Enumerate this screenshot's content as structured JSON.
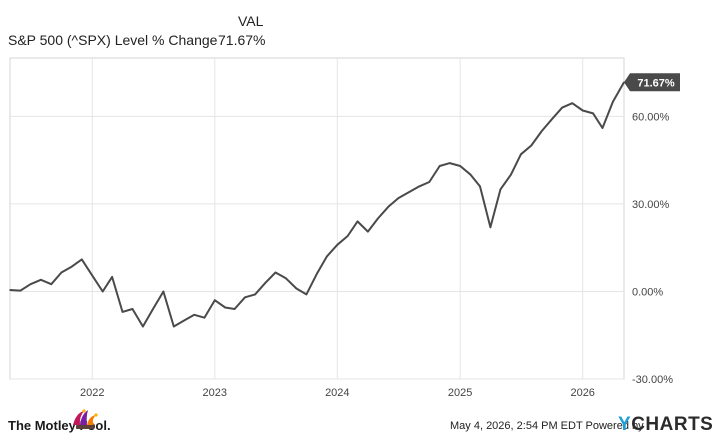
{
  "legend": {
    "column_header": "VAL",
    "series_name": "S&P 500 (^SPX) Level % Change",
    "series_value": "71.67%"
  },
  "chart_data": {
    "type": "line",
    "series": [
      {
        "name": "S&P 500 (^SPX) Level % Change",
        "x": [
          "2021-05-01",
          "2021-06-01",
          "2021-07-01",
          "2021-08-01",
          "2021-09-01",
          "2021-10-01",
          "2021-11-01",
          "2021-12-01",
          "2022-01-01",
          "2022-02-01",
          "2022-03-01",
          "2022-04-01",
          "2022-05-01",
          "2022-06-01",
          "2022-07-01",
          "2022-08-01",
          "2022-09-01",
          "2022-10-01",
          "2022-11-01",
          "2022-12-01",
          "2023-01-01",
          "2023-02-01",
          "2023-03-01",
          "2023-04-01",
          "2023-05-01",
          "2023-06-01",
          "2023-07-01",
          "2023-08-01",
          "2023-09-01",
          "2023-10-01",
          "2023-11-01",
          "2023-12-01",
          "2024-01-01",
          "2024-02-01",
          "2024-03-01",
          "2024-04-01",
          "2024-05-01",
          "2024-06-01",
          "2024-07-01",
          "2024-08-01",
          "2024-09-01",
          "2024-10-01",
          "2024-11-01",
          "2024-12-01",
          "2025-01-01",
          "2025-02-01",
          "2025-03-01",
          "2025-04-01",
          "2025-05-01",
          "2025-06-01",
          "2025-07-01",
          "2025-08-01",
          "2025-09-01",
          "2025-10-01",
          "2025-11-01",
          "2025-12-01",
          "2026-01-01",
          "2026-02-01",
          "2026-03-01",
          "2026-04-01",
          "2026-05-04"
        ],
        "values": [
          0.5,
          0.3,
          2.5,
          4.0,
          2.5,
          6.5,
          8.5,
          11.0,
          5.5,
          0.0,
          5.0,
          -7.0,
          -6.0,
          -12.0,
          -6.0,
          0.0,
          -12.0,
          -10.0,
          -8.0,
          -9.0,
          -3.0,
          -5.5,
          -6.0,
          -2.0,
          -1.0,
          3.0,
          6.5,
          4.5,
          1.0,
          -1.0,
          6.0,
          12.0,
          16.0,
          19.0,
          24.0,
          20.5,
          25.0,
          29.0,
          32.0,
          34.0,
          36.0,
          37.5,
          43.0,
          44.0,
          43.0,
          40.0,
          36.0,
          22.0,
          35.0,
          40.0,
          47.0,
          50.0,
          55.0,
          59.0,
          63.0,
          64.5,
          62.0,
          61.0,
          56.0,
          65.0,
          71.67
        ]
      }
    ],
    "x_ticks": [
      "2022",
      "2023",
      "2024",
      "2025",
      "2026"
    ],
    "y_ticks": [
      -30,
      0,
      30,
      60
    ],
    "y_tick_labels": [
      "-30.00%",
      "0.00%",
      "30.00%",
      "60.00%"
    ],
    "ylim": [
      -30,
      80
    ],
    "xlim": [
      "2021-05-01",
      "2026-05-04"
    ],
    "end_label": "71.67%",
    "grid": true,
    "y_axis_position": "right",
    "colors": {
      "line": "#4a4a4a",
      "grid": "#e5e5e5",
      "frame": "#d6d6d6",
      "end_label_bg": "#4a4a4a"
    }
  },
  "footer": {
    "brand": "The Motley Fool.",
    "timestamp": "May 4, 2026, 2:54 PM EDT Powered by",
    "provider_prefix": "Y",
    "provider_rest": "CHARTS"
  }
}
